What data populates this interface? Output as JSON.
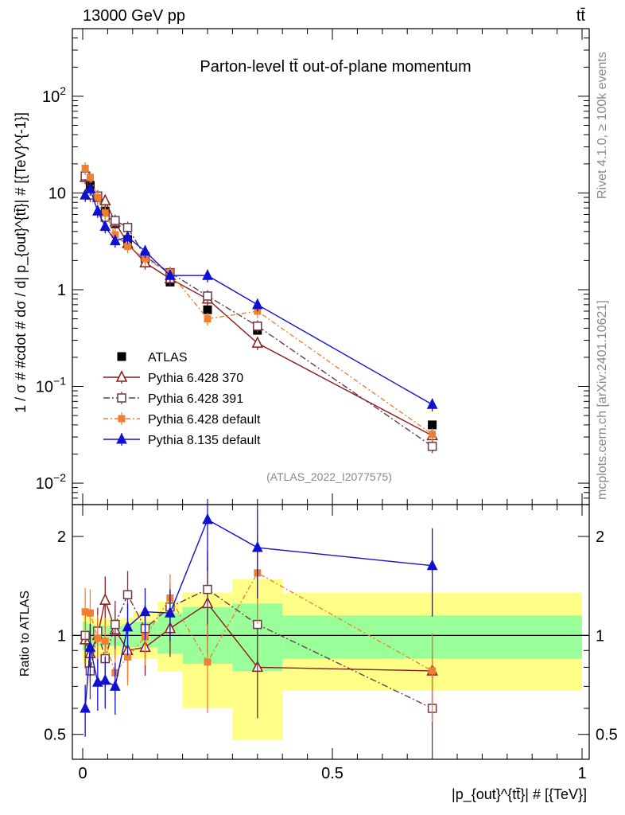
{
  "header": {
    "left": "13000 GeV pp",
    "right": "tt̄"
  },
  "side_labels": {
    "rivet": "Rivet 4.1.0, ≥ 100k events",
    "mcplots": "mcplots.cern.ch [arXiv:2401.10621]"
  },
  "colors": {
    "atlas": "#000000",
    "p370": "#8b1a1a",
    "p391": "#6b3a4a",
    "pdef": "#f08030",
    "p8": "#1010d0",
    "band_green": "#99ff99",
    "band_yellow": "#ffff88"
  },
  "chart_data": [
    {
      "type": "scatter",
      "title": "Parton-level tt̄ out-of-plane momentum",
      "subtitle": "(ATLAS_2022_I2077575)",
      "ylabel": "1 / σ # #cdot # dσ / d| p_{out}^{tt̄}| # [{TeV}^{-1}]",
      "xlabel": "",
      "yscale": "log",
      "xlim": [
        0,
        1
      ],
      "ylim": [
        0.006,
        500
      ],
      "y_tick_labels": [
        "10^-2",
        "10^-1",
        "1",
        "10",
        "10^2"
      ],
      "legend_position": "middle-left",
      "x": [
        0.005,
        0.015,
        0.03,
        0.045,
        0.065,
        0.09,
        0.125,
        0.175,
        0.25,
        0.35,
        0.7
      ],
      "series": [
        {
          "name": "ATLAS",
          "values": [
            15,
            12,
            9,
            6.5,
            4.8,
            3.3,
            2.1,
            1.2,
            0.62,
            0.38,
            0.04
          ]
        },
        {
          "name": "Pythia 6.428 370",
          "values": [
            14.5,
            10.5,
            9,
            8.3,
            5,
            3,
            1.9,
            1.3,
            0.8,
            0.28,
            0.031
          ]
        },
        {
          "name": "Pythia 6.428 391",
          "values": [
            15,
            9.5,
            9.3,
            5.6,
            5.2,
            4.4,
            2.2,
            1.5,
            0.86,
            0.42,
            0.024
          ]
        },
        {
          "name": "Pythia 6.428 default",
          "values": [
            18,
            14.5,
            9,
            6.2,
            3.7,
            2.8,
            2.1,
            1.5,
            0.5,
            0.6,
            0.032
          ]
        },
        {
          "name": "Pythia 8.135 default",
          "values": [
            9.5,
            11,
            6.5,
            4.5,
            3.2,
            3.5,
            2.5,
            1.4,
            1.4,
            0.7,
            0.065
          ]
        }
      ]
    },
    {
      "type": "scatter",
      "ylabel": "Ratio to ATLAS",
      "xlabel": "|p_{out}^{tt̄}| # [{TeV}]",
      "yscale": "log",
      "xlim": [
        0,
        1
      ],
      "ylim": [
        0.42,
        2.5
      ],
      "x_tick_labels": [
        "0",
        "0.5",
        "1"
      ],
      "y_tick_labels": [
        "0.5",
        "1",
        "2"
      ],
      "x": [
        0.005,
        0.015,
        0.03,
        0.045,
        0.065,
        0.09,
        0.125,
        0.175,
        0.25,
        0.35,
        0.7
      ],
      "series": [
        {
          "name": "Pythia 6.428 370",
          "values": [
            0.97,
            0.88,
            1.0,
            1.28,
            1.04,
            0.9,
            0.92,
            1.05,
            1.25,
            0.8,
            0.78
          ]
        },
        {
          "name": "Pythia 6.428 391",
          "values": [
            1.0,
            0.78,
            1.03,
            0.85,
            1.08,
            1.33,
            1.05,
            1.22,
            1.38,
            1.08,
            0.6
          ]
        },
        {
          "name": "Pythia 6.428 default",
          "values": [
            1.18,
            1.17,
            0.98,
            0.96,
            0.77,
            0.86,
            0.99,
            1.3,
            0.83,
            1.55,
            0.78
          ]
        },
        {
          "name": "Pythia 8.135 default",
          "values": [
            0.6,
            0.92,
            0.72,
            0.73,
            0.7,
            1.06,
            1.18,
            1.17,
            2.25,
            1.85,
            1.63
          ]
        }
      ],
      "bands": {
        "edges": [
          0,
          0.01,
          0.02,
          0.04,
          0.05,
          0.08,
          0.1,
          0.15,
          0.2,
          0.3,
          0.4,
          1.0
        ],
        "green_lo": [
          0.9,
          0.92,
          0.93,
          0.93,
          0.93,
          0.92,
          0.92,
          0.88,
          0.82,
          0.78,
          0.85
        ],
        "green_hi": [
          1.1,
          1.08,
          1.07,
          1.07,
          1.07,
          1.08,
          1.1,
          1.17,
          1.22,
          1.25,
          1.15
        ],
        "yellow_lo": [
          0.82,
          0.85,
          0.86,
          0.87,
          0.87,
          0.86,
          0.85,
          0.78,
          0.6,
          0.48,
          0.68
        ],
        "yellow_hi": [
          1.2,
          1.15,
          1.12,
          1.12,
          1.12,
          1.13,
          1.18,
          1.27,
          1.35,
          1.48,
          1.35
        ]
      }
    }
  ]
}
